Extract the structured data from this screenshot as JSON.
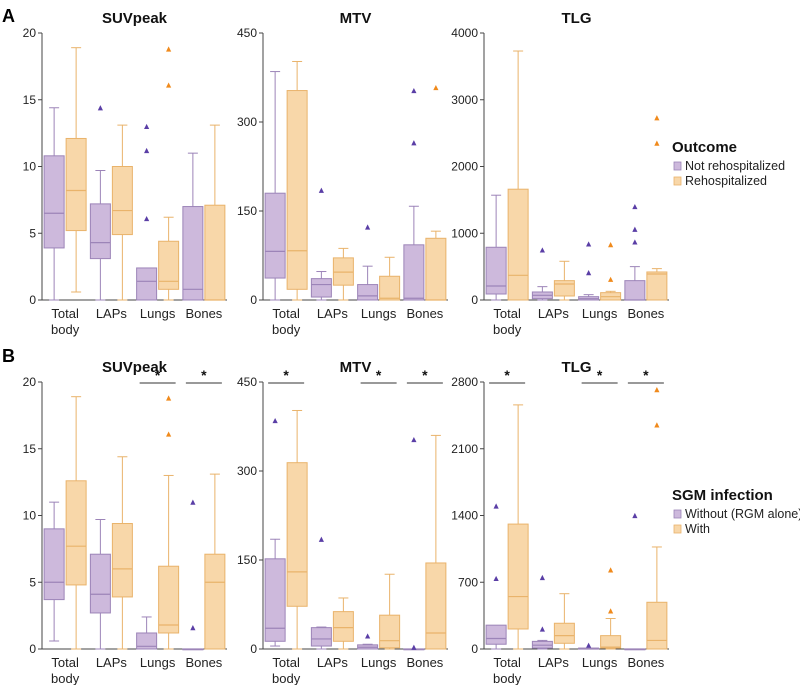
{
  "colors": {
    "purple_fill": "#cdb9dc",
    "purple_line": "#9c84b8",
    "purple_marker": "#5a3ea6",
    "orange_fill": "#f8d7a9",
    "orange_line": "#e9b36b",
    "orange_marker": "#f08a1c",
    "axis": "#444444"
  },
  "rows": [
    {
      "letter": "A",
      "legend": {
        "title": "Outcome",
        "entries": [
          "Not rehospitalized",
          "Rehospitalized"
        ]
      },
      "panels": [
        {
          "title": "SUVpeak",
          "ylim": [
            0,
            20
          ],
          "yticks": [
            0,
            5,
            10,
            15,
            20
          ],
          "categories": [
            "Total body",
            "LAPs",
            "Lungs",
            "Bones"
          ],
          "boxes": [
            {
              "category": "Total body",
              "group": 0,
              "whisker_low": 0,
              "q1": 3.9,
              "median": 6.5,
              "q3": 10.8,
              "whisker_high": 14.4,
              "outliers": []
            },
            {
              "category": "Total body",
              "group": 1,
              "whisker_low": 0.6,
              "q1": 5.2,
              "median": 8.2,
              "q3": 12.1,
              "whisker_high": 18.9,
              "outliers": []
            },
            {
              "category": "LAPs",
              "group": 0,
              "whisker_low": 0,
              "q1": 3.1,
              "median": 4.3,
              "q3": 7.2,
              "whisker_high": 9.7,
              "outliers": [
                14.4
              ]
            },
            {
              "category": "LAPs",
              "group": 1,
              "whisker_low": 0,
              "q1": 4.9,
              "median": 6.7,
              "q3": 10.0,
              "whisker_high": 13.1,
              "outliers": []
            },
            {
              "category": "Lungs",
              "group": 0,
              "whisker_low": 0,
              "q1": 0,
              "median": 1.4,
              "q3": 2.4,
              "whisker_high": 2.4,
              "outliers": [
                6.1,
                11.2,
                13.0
              ]
            },
            {
              "category": "Lungs",
              "group": 1,
              "whisker_low": 0,
              "q1": 0.8,
              "median": 1.4,
              "q3": 4.4,
              "whisker_high": 6.2,
              "outliers": [
                16.1,
                18.8
              ]
            },
            {
              "category": "Bones",
              "group": 0,
              "whisker_low": 0,
              "q1": 0,
              "median": 0.8,
              "q3": 7.0,
              "whisker_high": 11.0,
              "outliers": []
            },
            {
              "category": "Bones",
              "group": 1,
              "whisker_low": 0,
              "q1": 0,
              "median": 0,
              "q3": 7.1,
              "whisker_high": 13.1,
              "outliers": []
            }
          ],
          "significance": []
        },
        {
          "title": "MTV",
          "ylim": [
            0,
            450
          ],
          "yticks": [
            0,
            150,
            300,
            450
          ],
          "categories": [
            "Total body",
            "LAPs",
            "Lungs",
            "Bones"
          ],
          "boxes": [
            {
              "category": "Total body",
              "group": 0,
              "whisker_low": 0,
              "q1": 37,
              "median": 82,
              "q3": 180,
              "whisker_high": 385,
              "outliers": []
            },
            {
              "category": "Total body",
              "group": 1,
              "whisker_low": 0,
              "q1": 18,
              "median": 83,
              "q3": 353,
              "whisker_high": 402,
              "outliers": []
            },
            {
              "category": "LAPs",
              "group": 0,
              "whisker_low": 0,
              "q1": 5,
              "median": 26,
              "q3": 36,
              "whisker_high": 48,
              "outliers": [
                185
              ]
            },
            {
              "category": "LAPs",
              "group": 1,
              "whisker_low": 0,
              "q1": 25,
              "median": 47,
              "q3": 71,
              "whisker_high": 87,
              "outliers": []
            },
            {
              "category": "Lungs",
              "group": 0,
              "whisker_low": 0,
              "q1": 0,
              "median": 7,
              "q3": 26,
              "whisker_high": 57,
              "outliers": [
                123
              ]
            },
            {
              "category": "Lungs",
              "group": 1,
              "whisker_low": 0,
              "q1": 0,
              "median": 3,
              "q3": 40,
              "whisker_high": 72,
              "outliers": []
            },
            {
              "category": "Bones",
              "group": 0,
              "whisker_low": 0,
              "q1": 0,
              "median": 3,
              "q3": 93,
              "whisker_high": 158,
              "outliers": [
                265,
                353
              ]
            },
            {
              "category": "Bones",
              "group": 1,
              "whisker_low": 0,
              "q1": 0,
              "median": 0,
              "q3": 104,
              "whisker_high": 116,
              "outliers": [
                358
              ]
            }
          ],
          "significance": []
        },
        {
          "title": "TLG",
          "ylim": [
            0,
            4000
          ],
          "yticks": [
            0,
            1000,
            2000,
            3000,
            4000
          ],
          "categories": [
            "Total body",
            "LAPs",
            "Lungs",
            "Bones"
          ],
          "boxes": [
            {
              "category": "Total body",
              "group": 0,
              "whisker_low": 0,
              "q1": 90,
              "median": 210,
              "q3": 790,
              "whisker_high": 1570,
              "outliers": []
            },
            {
              "category": "Total body",
              "group": 1,
              "whisker_low": 0,
              "q1": 0,
              "median": 370,
              "q3": 1660,
              "whisker_high": 3730,
              "outliers": []
            },
            {
              "category": "LAPs",
              "group": 0,
              "whisker_low": 0,
              "q1": 20,
              "median": 70,
              "q3": 120,
              "whisker_high": 200,
              "outliers": [
                750
              ]
            },
            {
              "category": "LAPs",
              "group": 1,
              "whisker_low": 0,
              "q1": 60,
              "median": 240,
              "q3": 290,
              "whisker_high": 580,
              "outliers": []
            },
            {
              "category": "Lungs",
              "group": 0,
              "whisker_low": 0,
              "q1": 0,
              "median": 20,
              "q3": 50,
              "whisker_high": 80,
              "outliers": [
                410,
                840
              ]
            },
            {
              "category": "Lungs",
              "group": 1,
              "whisker_low": 0,
              "q1": 0,
              "median": 50,
              "q3": 110,
              "whisker_high": 130,
              "outliers": [
                310,
                830
              ]
            },
            {
              "category": "Bones",
              "group": 0,
              "whisker_low": 0,
              "q1": 0,
              "median": 0,
              "q3": 290,
              "whisker_high": 500,
              "outliers": [
                870,
                1060,
                1400
              ]
            },
            {
              "category": "Bones",
              "group": 1,
              "whisker_low": 0,
              "q1": 0,
              "median": 390,
              "q3": 420,
              "whisker_high": 470,
              "outliers": [
                2350,
                2730
              ]
            }
          ],
          "significance": []
        }
      ]
    },
    {
      "letter": "B",
      "legend": {
        "title": "SGM infection",
        "entries": [
          "Without (RGM alone)",
          "With"
        ]
      },
      "panels": [
        {
          "title": "SUVpeak",
          "ylim": [
            0,
            20
          ],
          "yticks": [
            0,
            5,
            10,
            15,
            20
          ],
          "categories": [
            "Total body",
            "LAPs",
            "Lungs",
            "Bones"
          ],
          "boxes": [
            {
              "category": "Total body",
              "group": 0,
              "whisker_low": 0.6,
              "q1": 3.7,
              "median": 5.0,
              "q3": 9.0,
              "whisker_high": 11.0,
              "outliers": []
            },
            {
              "category": "Total body",
              "group": 1,
              "whisker_low": 0,
              "q1": 4.8,
              "median": 7.7,
              "q3": 12.6,
              "whisker_high": 18.9,
              "outliers": []
            },
            {
              "category": "LAPs",
              "group": 0,
              "whisker_low": 0,
              "q1": 2.7,
              "median": 4.1,
              "q3": 7.1,
              "whisker_high": 9.7,
              "outliers": []
            },
            {
              "category": "LAPs",
              "group": 1,
              "whisker_low": 0,
              "q1": 3.9,
              "median": 6.0,
              "q3": 9.4,
              "whisker_high": 14.4,
              "outliers": []
            },
            {
              "category": "Lungs",
              "group": 0,
              "whisker_low": 0,
              "q1": 0,
              "median": 0.2,
              "q3": 1.2,
              "whisker_high": 2.4,
              "outliers": []
            },
            {
              "category": "Lungs",
              "group": 1,
              "whisker_low": 0,
              "q1": 1.2,
              "median": 1.8,
              "q3": 6.2,
              "whisker_high": 13.0,
              "outliers": [
                16.1,
                18.8
              ]
            },
            {
              "category": "Bones",
              "group": 0,
              "whisker_low": 0,
              "q1": 0,
              "median": 0,
              "q3": 0,
              "whisker_high": 0,
              "outliers": [
                1.6,
                11.0
              ]
            },
            {
              "category": "Bones",
              "group": 1,
              "whisker_low": 0,
              "q1": 0,
              "median": 5.0,
              "q3": 7.1,
              "whisker_high": 13.1,
              "outliers": []
            }
          ],
          "significance": [
            {
              "category": "Lungs",
              "label": "*"
            },
            {
              "category": "Bones",
              "label": "*"
            }
          ]
        },
        {
          "title": "MTV",
          "ylim": [
            0,
            450
          ],
          "yticks": [
            0,
            150,
            300,
            450
          ],
          "categories": [
            "Total body",
            "LAPs",
            "Lungs",
            "Bones"
          ],
          "boxes": [
            {
              "category": "Total body",
              "group": 0,
              "whisker_low": 5,
              "q1": 13,
              "median": 35,
              "q3": 152,
              "whisker_high": 185,
              "outliers": [
                385
              ]
            },
            {
              "category": "Total body",
              "group": 1,
              "whisker_low": 0,
              "q1": 72,
              "median": 130,
              "q3": 314,
              "whisker_high": 402,
              "outliers": []
            },
            {
              "category": "LAPs",
              "group": 0,
              "whisker_low": 0,
              "q1": 5,
              "median": 17,
              "q3": 36,
              "whisker_high": 37,
              "outliers": [
                185
              ]
            },
            {
              "category": "LAPs",
              "group": 1,
              "whisker_low": 0,
              "q1": 13,
              "median": 36,
              "q3": 63,
              "whisker_high": 86,
              "outliers": []
            },
            {
              "category": "Lungs",
              "group": 0,
              "whisker_low": 0,
              "q1": 0,
              "median": 3,
              "q3": 7,
              "whisker_high": 8,
              "outliers": [
                22
              ]
            },
            {
              "category": "Lungs",
              "group": 1,
              "whisker_low": 0,
              "q1": 2,
              "median": 14,
              "q3": 57,
              "whisker_high": 126,
              "outliers": []
            },
            {
              "category": "Bones",
              "group": 0,
              "whisker_low": 0,
              "q1": 0,
              "median": 0,
              "q3": 0,
              "whisker_high": 0,
              "outliers": [
                3,
                353
              ]
            },
            {
              "category": "Bones",
              "group": 1,
              "whisker_low": 0,
              "q1": 0,
              "median": 27,
              "q3": 145,
              "whisker_high": 360,
              "outliers": []
            }
          ],
          "significance": [
            {
              "category": "Total body",
              "label": "*"
            },
            {
              "category": "Lungs",
              "label": "*"
            },
            {
              "category": "Bones",
              "label": "*"
            }
          ]
        },
        {
          "title": "TLG",
          "ylim": [
            0,
            2800
          ],
          "yticks": [
            0,
            700,
            1400,
            2100,
            2800
          ],
          "categories": [
            "Total body",
            "LAPs",
            "Lungs",
            "Bones"
          ],
          "boxes": [
            {
              "category": "Total body",
              "group": 0,
              "whisker_low": 0,
              "q1": 50,
              "median": 110,
              "q3": 250,
              "whisker_high": 250,
              "outliers": [
                740,
                1500
              ]
            },
            {
              "category": "Total body",
              "group": 1,
              "whisker_low": 0,
              "q1": 210,
              "median": 550,
              "q3": 1310,
              "whisker_high": 2560,
              "outliers": []
            },
            {
              "category": "LAPs",
              "group": 0,
              "whisker_low": 0,
              "q1": 10,
              "median": 40,
              "q3": 80,
              "whisker_high": 90,
              "outliers": [
                210,
                750
              ]
            },
            {
              "category": "LAPs",
              "group": 1,
              "whisker_low": 0,
              "q1": 60,
              "median": 140,
              "q3": 270,
              "whisker_high": 580,
              "outliers": []
            },
            {
              "category": "Lungs",
              "group": 0,
              "whisker_low": 0,
              "q1": 0,
              "median": 0,
              "q3": 10,
              "whisker_high": 10,
              "outliers": [
                40
              ]
            },
            {
              "category": "Lungs",
              "group": 1,
              "whisker_low": 0,
              "q1": 10,
              "median": 20,
              "q3": 140,
              "whisker_high": 320,
              "outliers": [
                400,
                830
              ]
            },
            {
              "category": "Bones",
              "group": 0,
              "whisker_low": 0,
              "q1": 0,
              "median": 0,
              "q3": 0,
              "whisker_high": 0,
              "outliers": [
                1400
              ]
            },
            {
              "category": "Bones",
              "group": 1,
              "whisker_low": 0,
              "q1": 0,
              "median": 90,
              "q3": 490,
              "whisker_high": 1070,
              "outliers": [
                2350,
                2720
              ]
            }
          ],
          "significance": [
            {
              "category": "Total body",
              "label": "*"
            },
            {
              "category": "Lungs",
              "label": "*"
            },
            {
              "category": "Bones",
              "label": "*"
            }
          ]
        }
      ]
    }
  ],
  "chart_data": {
    "type": "box",
    "panels": [
      "A: SUVpeak / MTV / TLG by Outcome (Not rehospitalized vs Rehospitalized)",
      "B: SUVpeak / MTV / TLG by SGM infection (Without (RGM alone) vs With)"
    ],
    "categories": [
      "Total body",
      "LAPs",
      "Lungs",
      "Bones"
    ],
    "series_note": "Box statistics per panel are listed under rows[].panels[].boxes"
  }
}
